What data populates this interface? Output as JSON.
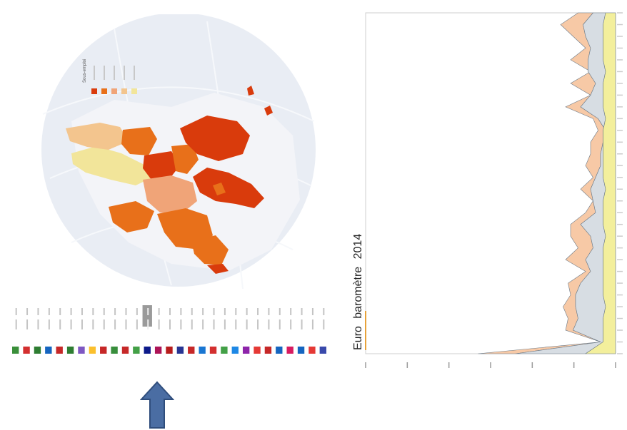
{
  "map": {
    "legend_title": "Sous-emploi",
    "legend_colors": [
      "#d93b0c",
      "#e8701a",
      "#f0a478",
      "#f3c58e",
      "#f2e59a"
    ],
    "map_colors": {
      "darkest": "#d93b0c",
      "dark": "#e8701a",
      "medium": "#f0a478",
      "light": "#f3c58e",
      "lightest": "#f2e59a",
      "land": "#eef0f6",
      "sea": "#e7ebf3"
    }
  },
  "flag_strip": {
    "count": 29,
    "highlighted_index": 12,
    "flag_colors": [
      "#3a8f3a",
      "#d32f2f",
      "#2e7d32",
      "#1565c0",
      "#c62828",
      "#2e7d32",
      "#7e57c2",
      "#fbc02d",
      "#c62828",
      "#388e3c",
      "#c62828",
      "#43a047",
      "#0d1a8a",
      "#ad1457",
      "#b71c1c",
      "#283593",
      "#c62828",
      "#1976d2",
      "#d32f2f",
      "#43a047",
      "#1e88e5",
      "#8e24aa",
      "#e53935",
      "#c62828",
      "#1565c0",
      "#d81b60",
      "#1565c0",
      "#e53935",
      "#3949ab"
    ]
  },
  "chart": {
    "title_part1": "Euro",
    "title_part2": "baromètre",
    "title_part3": "2014",
    "colors": {
      "top": "#f7c9a6",
      "mid": "#d7dde3",
      "bottom": "#f3ef9c",
      "line": "#6b7a88"
    },
    "bottom_band": [
      0.04,
      0.05,
      0.05,
      0.05,
      0.05,
      0.04,
      0.05,
      0.05,
      0.05,
      0.04,
      0.05,
      0.05,
      0.05,
      0.05,
      0.05,
      0.04,
      0.05,
      0.05,
      0.05,
      0.04,
      0.05,
      0.05,
      0.05,
      0.05,
      0.05,
      0.04,
      0.05,
      0.05,
      0.05,
      0.12
    ],
    "mid_band": [
      0.09,
      0.13,
      0.12,
      0.1,
      0.11,
      0.11,
      0.08,
      0.1,
      0.14,
      0.07,
      0.04,
      0.05,
      0.06,
      0.06,
      0.08,
      0.1,
      0.09,
      0.08,
      0.14,
      0.1,
      0.09,
      0.12,
      0.1,
      0.14,
      0.16,
      0.16,
      0.15,
      0.17,
      0.06,
      0.4
    ],
    "top_band": [
      0.15,
      0.22,
      0.17,
      0.12,
      0.18,
      0.1,
      0.18,
      0.1,
      0.2,
      0.09,
      0.07,
      0.1,
      0.1,
      0.12,
      0.09,
      0.14,
      0.09,
      0.12,
      0.18,
      0.18,
      0.15,
      0.2,
      0.12,
      0.19,
      0.18,
      0.21,
      0.19,
      0.2,
      0.06,
      0.55
    ]
  }
}
